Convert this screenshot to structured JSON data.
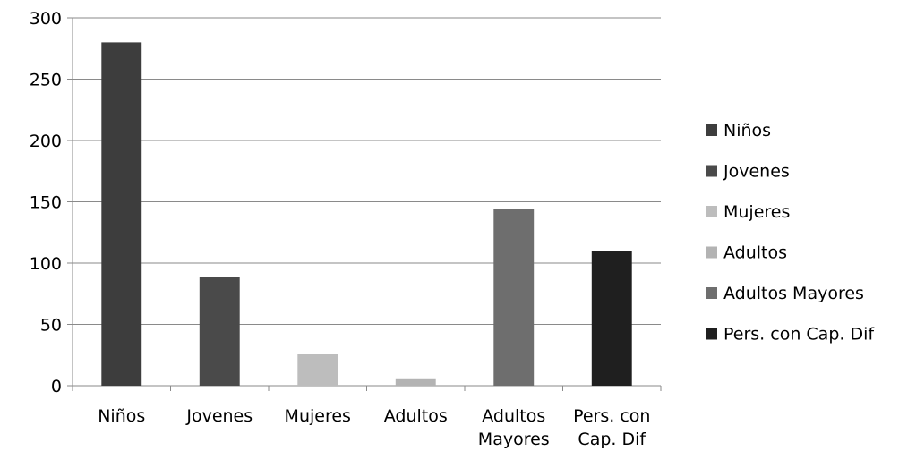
{
  "chart_data": {
    "type": "bar",
    "title": "",
    "xlabel": "",
    "ylabel": "",
    "categories": [
      [
        "Niños"
      ],
      [
        "Jovenes"
      ],
      [
        "Mujeres"
      ],
      [
        "Adultos"
      ],
      [
        "Adultos",
        "Mayores"
      ],
      [
        "Pers. con",
        "Cap. Dif"
      ]
    ],
    "values": [
      280,
      89,
      26,
      6,
      144,
      110
    ],
    "bar_colors": [
      "#3d3d3d",
      "#4a4a4a",
      "#bdbdbd",
      "#b3b3b3",
      "#6e6e6e",
      "#1f1f1f"
    ],
    "ylim": [
      0,
      300
    ],
    "yticks": [
      0,
      50,
      100,
      150,
      200,
      250,
      300
    ],
    "grid": true,
    "legend": {
      "position": "right",
      "entries": [
        {
          "label": "Niños",
          "color": "#3d3d3d"
        },
        {
          "label": "Jovenes",
          "color": "#4a4a4a"
        },
        {
          "label": "Mujeres",
          "color": "#bdbdbd"
        },
        {
          "label": "Adultos",
          "color": "#b3b3b3"
        },
        {
          "label": "Adultos Mayores",
          "color": "#6e6e6e"
        },
        {
          "label": "Pers. con Cap. Dif",
          "color": "#1f1f1f"
        }
      ]
    }
  }
}
